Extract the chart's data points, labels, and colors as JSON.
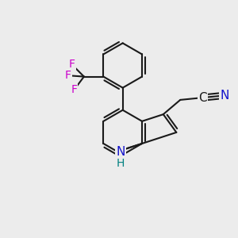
{
  "background_color": "#ececec",
  "bond_color": "#1a1a1a",
  "bond_width": 1.5,
  "F_color": "#cc00cc",
  "N_color": "#1414cc",
  "NH_color": "#008080",
  "C_color": "#1a1a1a",
  "font_size_atom": 10,
  "figsize": [
    3.0,
    3.0
  ],
  "dpi": 100,
  "xlim": [
    -1.6,
    1.6
  ],
  "ylim": [
    -1.6,
    1.6
  ]
}
